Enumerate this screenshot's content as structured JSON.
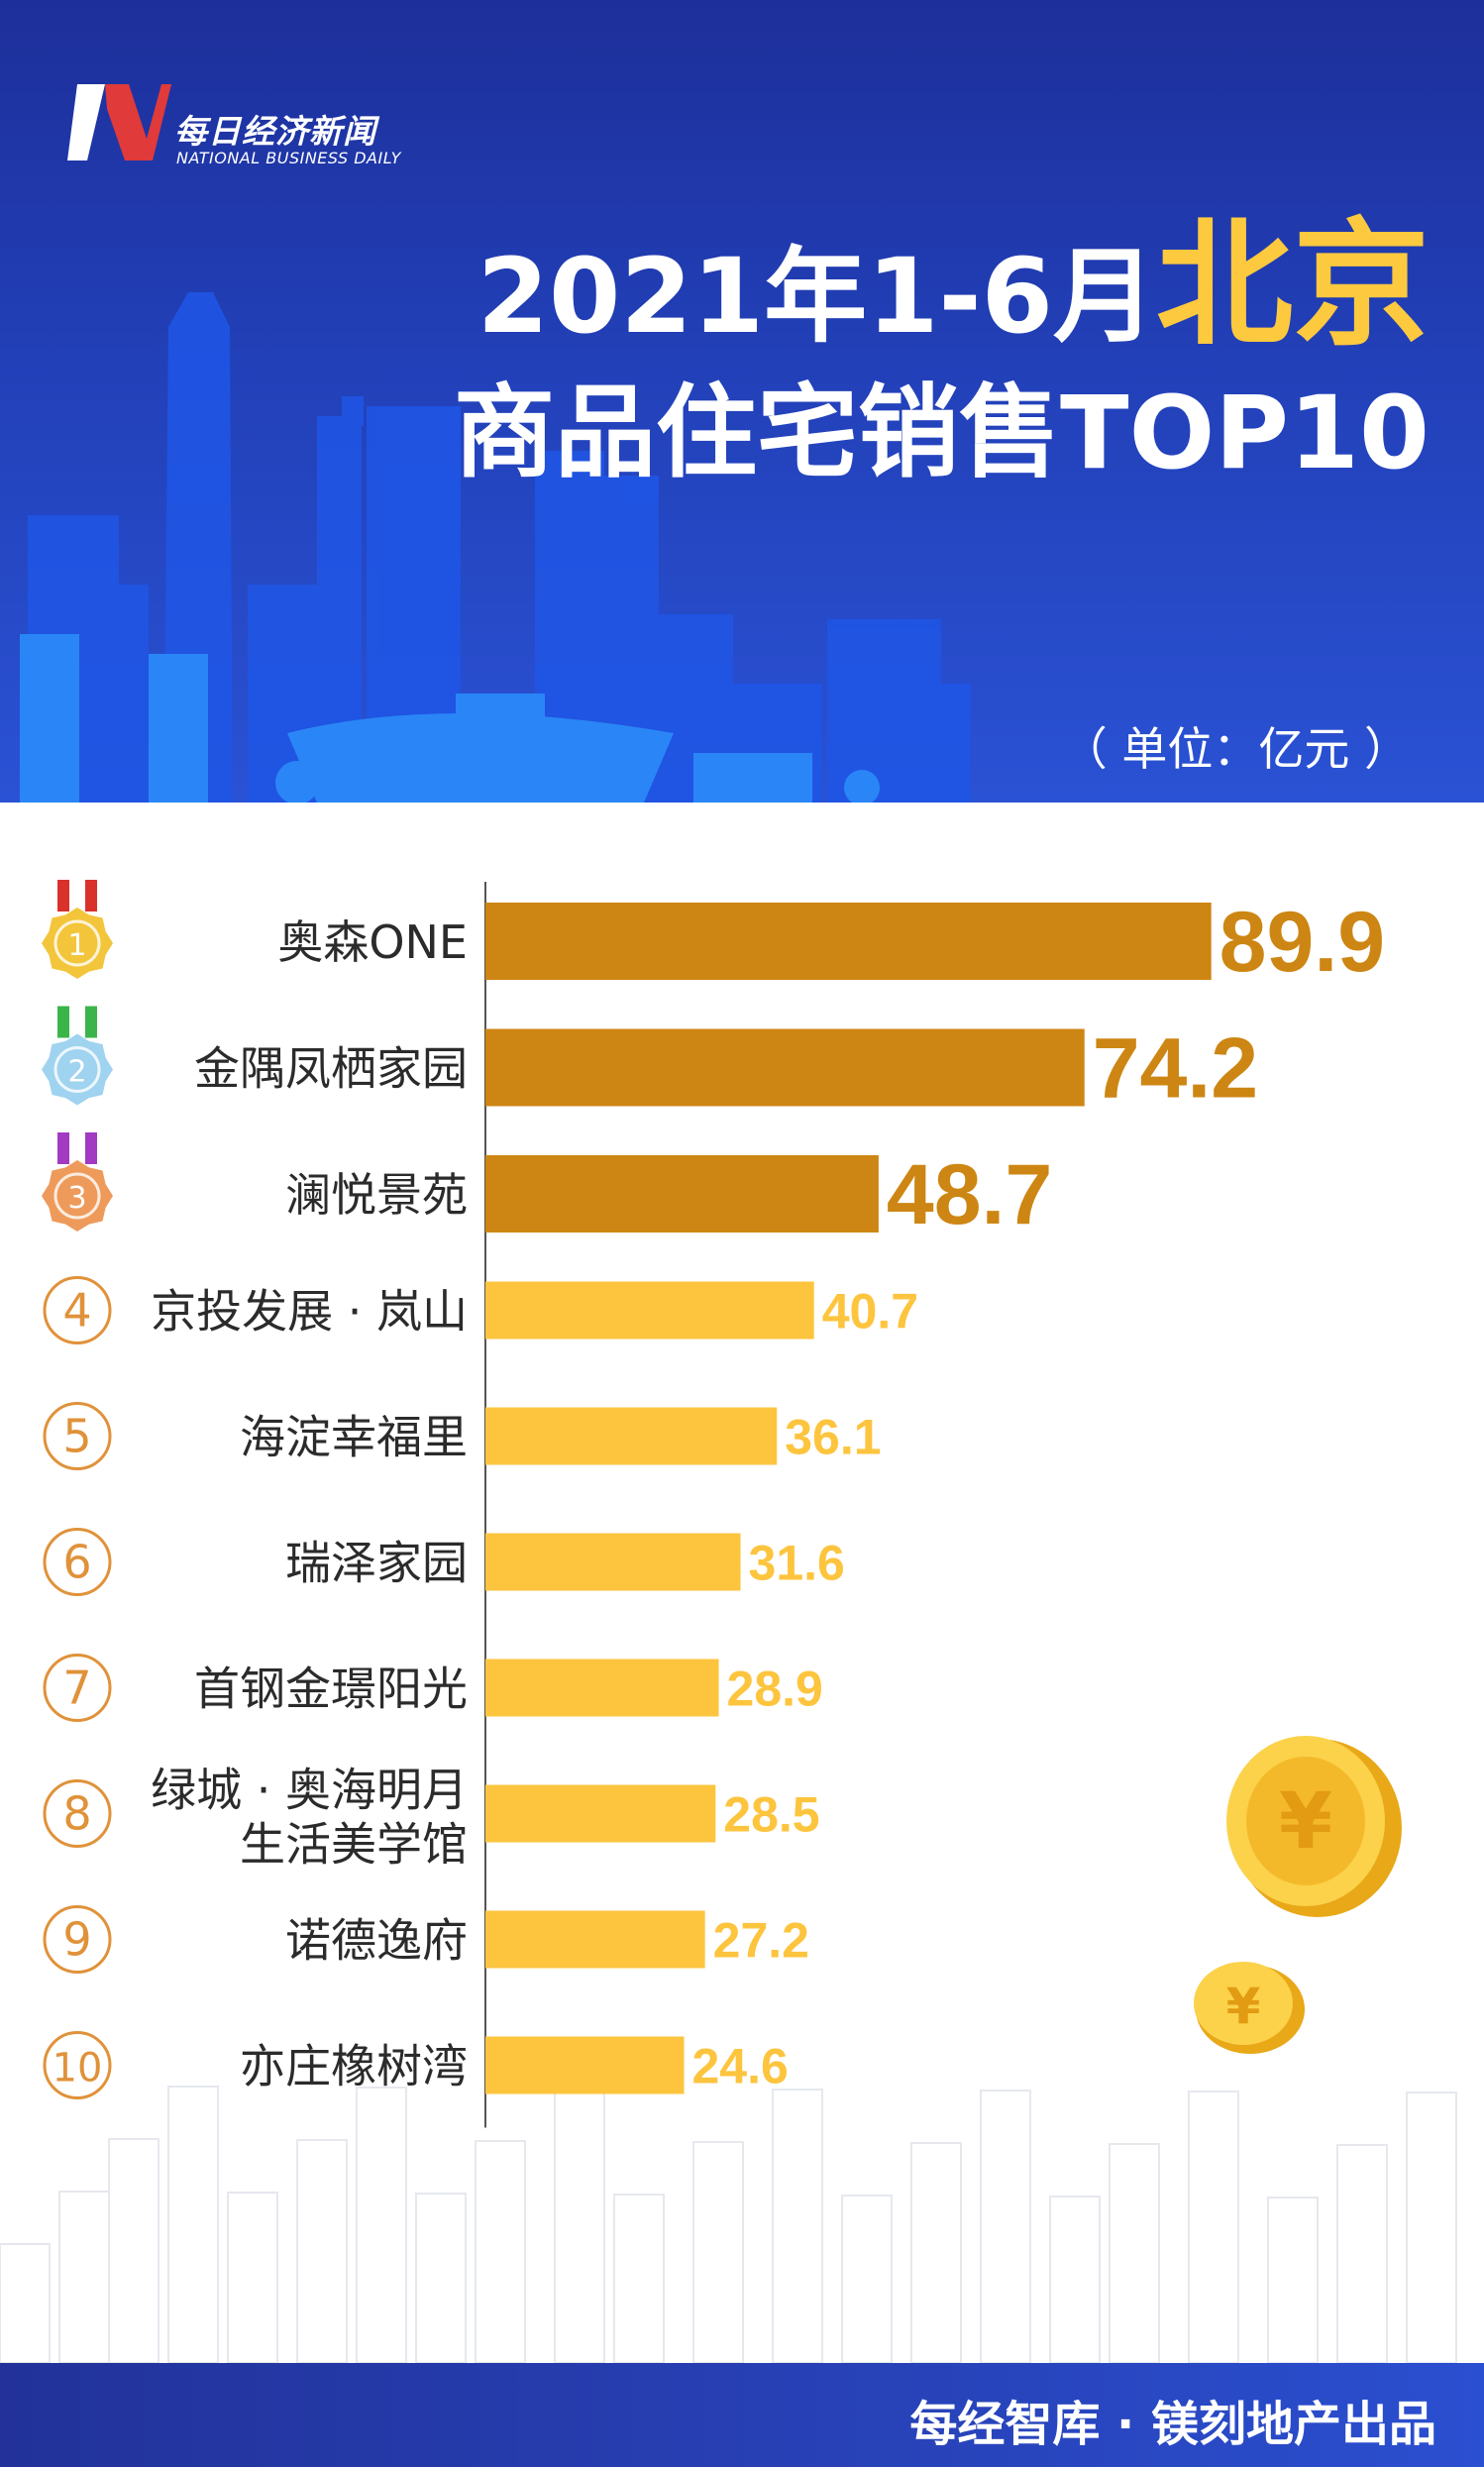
{
  "logo": {
    "name_cn": "每日经济新闻",
    "name_en": "NATIONAL BUSINESS DAILY"
  },
  "title": {
    "date": "2021年1-6月",
    "city": "北京",
    "line2": "商品住宅销售TOP10"
  },
  "unit": "（ 单位：亿元 ）",
  "footer": "每经智库 · 镁刻地产出品",
  "colors": {
    "background_header": "#2240b8",
    "accent": "#fdc93f",
    "top3_bar": "#cd8613",
    "other_bar": "#fdc43e",
    "rank_circle": "#e0923a"
  },
  "chart_data": {
    "type": "bar",
    "orientation": "horizontal",
    "categories": [
      "奥森ONE",
      "金隅凤栖家园",
      "澜悦景苑",
      "京投发展 · 岚山",
      "海淀幸福里",
      "瑞泽家园",
      "首钢金璟阳光",
      "绿城 · 奥海明月生活美学馆",
      "诺德逸府",
      "亦庄橡树湾"
    ],
    "category_lines": [
      [
        "奥森ONE"
      ],
      [
        "金隅凤栖家园"
      ],
      [
        "澜悦景苑"
      ],
      [
        "京投发展 · 岚山"
      ],
      [
        "海淀幸福里"
      ],
      [
        "瑞泽家园"
      ],
      [
        "首钢金璟阳光"
      ],
      [
        "绿城 · 奥海明月",
        "生活美学馆"
      ],
      [
        "诺德逸府"
      ],
      [
        "亦庄橡树湾"
      ]
    ],
    "values": [
      89.9,
      74.2,
      48.7,
      40.7,
      36.1,
      31.6,
      28.9,
      28.5,
      27.2,
      24.6
    ],
    "value_labels": [
      "89.9",
      "74.2",
      "48.7",
      "40.7",
      "36.1",
      "31.6",
      "28.9",
      "28.5",
      "27.2",
      "24.6"
    ],
    "ranks": [
      "1",
      "2",
      "3",
      "4",
      "5",
      "6",
      "7",
      "8",
      "9",
      "10"
    ],
    "medal_ranks": [
      1,
      2,
      3
    ],
    "medal_colors": [
      "#f3c53a",
      "#9fd3ef",
      "#ee9a5a"
    ],
    "ribbon_colors": [
      "#d9322b",
      "#3bb54a",
      "#a23ac2"
    ],
    "xlim": [
      0,
      100
    ],
    "grid": false,
    "legend": "none"
  }
}
